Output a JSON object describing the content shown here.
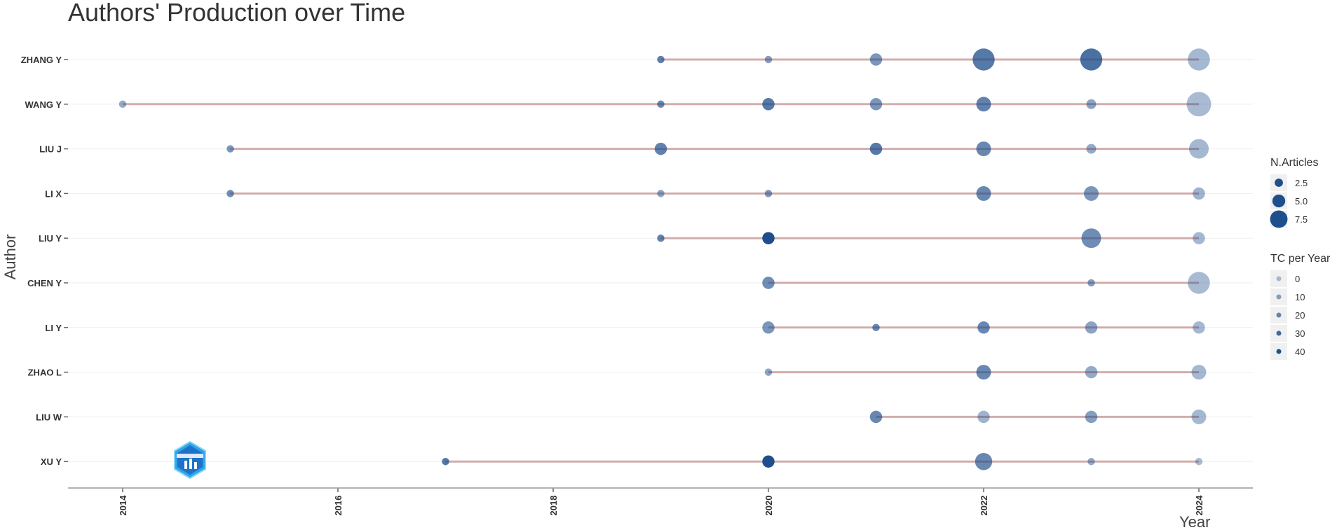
{
  "chart_data": {
    "type": "scatter",
    "title": "Authors' Production over Time",
    "xlabel": "Year",
    "ylabel": "Author",
    "xlim": [
      2014,
      2024
    ],
    "x_ticks": [
      "2014",
      "2016",
      "2018",
      "2020",
      "2022",
      "2024"
    ],
    "authors": [
      "ZHANG Y",
      "WANG Y",
      "LIU J",
      "LI X",
      "LIU Y",
      "CHEN Y",
      "LI Y",
      "ZHAO L",
      "LIU W",
      "XU Y"
    ],
    "series": [
      {
        "author": "ZHANG Y",
        "span": [
          2019,
          2024
        ],
        "points": [
          {
            "year": 2019,
            "articles": 1,
            "tc_per_year": 22
          },
          {
            "year": 2020,
            "articles": 1,
            "tc_per_year": 12
          },
          {
            "year": 2021,
            "articles": 3,
            "tc_per_year": 15
          },
          {
            "year": 2022,
            "articles": 7,
            "tc_per_year": 25
          },
          {
            "year": 2023,
            "articles": 7,
            "tc_per_year": 28
          },
          {
            "year": 2024,
            "articles": 7,
            "tc_per_year": 3
          }
        ]
      },
      {
        "author": "WANG Y",
        "span": [
          2014,
          2024
        ],
        "points": [
          {
            "year": 2014,
            "articles": 1,
            "tc_per_year": 8
          },
          {
            "year": 2019,
            "articles": 1,
            "tc_per_year": 20
          },
          {
            "year": 2020,
            "articles": 3,
            "tc_per_year": 25
          },
          {
            "year": 2021,
            "articles": 3,
            "tc_per_year": 15
          },
          {
            "year": 2022,
            "articles": 4,
            "tc_per_year": 22
          },
          {
            "year": 2023,
            "articles": 2,
            "tc_per_year": 10
          },
          {
            "year": 2024,
            "articles": 8,
            "tc_per_year": 2
          }
        ]
      },
      {
        "author": "LIU J",
        "span": [
          2015,
          2024
        ],
        "points": [
          {
            "year": 2015,
            "articles": 1,
            "tc_per_year": 15
          },
          {
            "year": 2019,
            "articles": 3,
            "tc_per_year": 22
          },
          {
            "year": 2021,
            "articles": 3,
            "tc_per_year": 25
          },
          {
            "year": 2022,
            "articles": 4,
            "tc_per_year": 20
          },
          {
            "year": 2023,
            "articles": 2,
            "tc_per_year": 8
          },
          {
            "year": 2024,
            "articles": 6,
            "tc_per_year": 3
          }
        ]
      },
      {
        "author": "LI X",
        "span": [
          2015,
          2024
        ],
        "points": [
          {
            "year": 2015,
            "articles": 1,
            "tc_per_year": 18
          },
          {
            "year": 2019,
            "articles": 1,
            "tc_per_year": 10
          },
          {
            "year": 2020,
            "articles": 1,
            "tc_per_year": 15
          },
          {
            "year": 2022,
            "articles": 4,
            "tc_per_year": 20
          },
          {
            "year": 2023,
            "articles": 4,
            "tc_per_year": 15
          },
          {
            "year": 2024,
            "articles": 3,
            "tc_per_year": 5
          }
        ]
      },
      {
        "author": "LIU Y",
        "span": [
          2019,
          2024
        ],
        "points": [
          {
            "year": 2019,
            "articles": 1,
            "tc_per_year": 22
          },
          {
            "year": 2020,
            "articles": 3,
            "tc_per_year": 40
          },
          {
            "year": 2023,
            "articles": 6,
            "tc_per_year": 18
          },
          {
            "year": 2024,
            "articles": 3,
            "tc_per_year": 3
          }
        ]
      },
      {
        "author": "CHEN Y",
        "span": [
          2020,
          2024
        ],
        "points": [
          {
            "year": 2020,
            "articles": 3,
            "tc_per_year": 18
          },
          {
            "year": 2023,
            "articles": 1,
            "tc_per_year": 12
          },
          {
            "year": 2024,
            "articles": 7,
            "tc_per_year": 2
          }
        ]
      },
      {
        "author": "LI Y",
        "span": [
          2020,
          2024
        ],
        "points": [
          {
            "year": 2020,
            "articles": 3,
            "tc_per_year": 15
          },
          {
            "year": 2021,
            "articles": 1,
            "tc_per_year": 20
          },
          {
            "year": 2022,
            "articles": 3,
            "tc_per_year": 20
          },
          {
            "year": 2023,
            "articles": 3,
            "tc_per_year": 10
          },
          {
            "year": 2024,
            "articles": 3,
            "tc_per_year": 3
          }
        ]
      },
      {
        "author": "ZHAO L",
        "span": [
          2020,
          2024
        ],
        "points": [
          {
            "year": 2020,
            "articles": 1,
            "tc_per_year": 10
          },
          {
            "year": 2022,
            "articles": 4,
            "tc_per_year": 20
          },
          {
            "year": 2023,
            "articles": 3,
            "tc_per_year": 8
          },
          {
            "year": 2024,
            "articles": 4,
            "tc_per_year": 3
          }
        ]
      },
      {
        "author": "LIU W",
        "span": [
          2021,
          2024
        ],
        "points": [
          {
            "year": 2021,
            "articles": 3,
            "tc_per_year": 20
          },
          {
            "year": 2022,
            "articles": 3,
            "tc_per_year": 5
          },
          {
            "year": 2023,
            "articles": 3,
            "tc_per_year": 12
          },
          {
            "year": 2024,
            "articles": 4,
            "tc_per_year": 3
          }
        ]
      },
      {
        "author": "XU Y",
        "span": [
          2017,
          2024
        ],
        "points": [
          {
            "year": 2017,
            "articles": 1,
            "tc_per_year": 25
          },
          {
            "year": 2020,
            "articles": 3,
            "tc_per_year": 40
          },
          {
            "year": 2022,
            "articles": 5,
            "tc_per_year": 20
          },
          {
            "year": 2023,
            "articles": 1,
            "tc_per_year": 8
          },
          {
            "year": 2024,
            "articles": 1,
            "tc_per_year": 2
          }
        ]
      }
    ],
    "legend": {
      "size_title": "N.Articles",
      "size_items": [
        {
          "label": "2.5",
          "value": 2.5
        },
        {
          "label": "5.0",
          "value": 5.0
        },
        {
          "label": "7.5",
          "value": 7.5
        }
      ],
      "color_title": "TC per Year",
      "color_items": [
        {
          "label": "0",
          "value": 0
        },
        {
          "label": "10",
          "value": 10
        },
        {
          "label": "20",
          "value": 20
        },
        {
          "label": "30",
          "value": 30
        },
        {
          "label": "40",
          "value": 40
        }
      ],
      "placement": "right"
    },
    "colors": {
      "point": "#1f4e8c",
      "segment": "#c99a9a",
      "gridline": "#eeeeee",
      "axis": "#999999",
      "legend_key_bg": "#f0f0f0"
    },
    "grid": true
  }
}
